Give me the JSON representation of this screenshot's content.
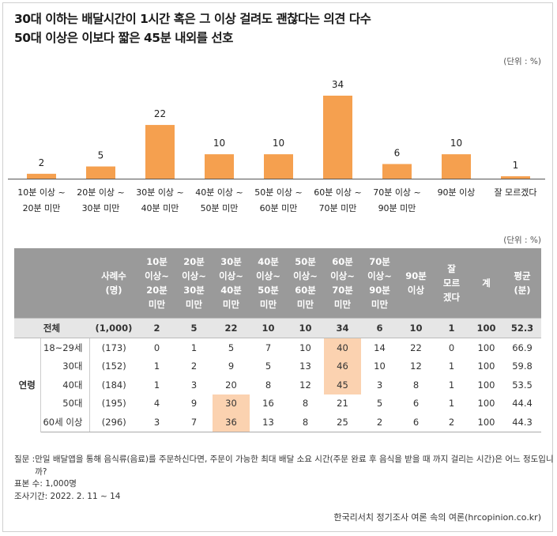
{
  "title_line1": "30대 이하는 배달시간이 1시간 혹은 그 이상 걸려도 괜찮다는 의견 다수",
  "title_line2": "50대 이상은 이보다 짧은 45분 내외를 선호",
  "unit": "(단위 : %)",
  "colors": {
    "bar": "#f5a04f",
    "highlight": "#fbd2b0",
    "header_bg": "#9a9a9a",
    "total_bg": "#e6e6e6"
  },
  "chart_data": {
    "type": "bar",
    "categories": [
      [
        "10분 이상 ~",
        "20분 미만"
      ],
      [
        "20분 이상 ~",
        "30분 미만"
      ],
      [
        "30분 이상 ~",
        "40분 미만"
      ],
      [
        "40분 이상 ~",
        "50분 미만"
      ],
      [
        "50분 이상 ~",
        "60분 미만"
      ],
      [
        "60분 이상 ~",
        "70분 미만"
      ],
      [
        "70분 이상 ~",
        "90분 미만"
      ],
      [
        "90분 이상"
      ],
      [
        "잘 모르겠다"
      ]
    ],
    "values": [
      2,
      5,
      22,
      10,
      10,
      34,
      6,
      10,
      1
    ],
    "ylim": [
      0,
      34
    ],
    "grid": false,
    "legend": "none"
  },
  "table": {
    "unit": "(단위 : %)",
    "headers": [
      [
        ""
      ],
      [
        ""
      ],
      [
        "사례수",
        "(명)"
      ],
      [
        "10분",
        "이상~",
        "20분",
        "미만"
      ],
      [
        "20분",
        "이상~",
        "30분",
        "미만"
      ],
      [
        "30분",
        "이상~",
        "40분",
        "미만"
      ],
      [
        "40분",
        "이상~",
        "50분",
        "미만"
      ],
      [
        "50분",
        "이상~",
        "60분",
        "미만"
      ],
      [
        "60분",
        "이상~",
        "70분",
        "미만"
      ],
      [
        "70분",
        "이상~",
        "90분",
        "미만"
      ],
      [
        "90분",
        "이상"
      ],
      [
        "잘",
        "모르",
        "겠다"
      ],
      [
        "계"
      ],
      [
        "평균",
        "(분)"
      ]
    ],
    "total": {
      "label": "전체",
      "cells": [
        "(1,000)",
        "2",
        "5",
        "22",
        "10",
        "10",
        "34",
        "6",
        "10",
        "1",
        "100",
        "52.3"
      ]
    },
    "group_label": "연령",
    "rows": [
      {
        "label": "18~29세",
        "cells": [
          "(173)",
          "0",
          "1",
          "5",
          "7",
          "10",
          "40",
          "14",
          "22",
          "0",
          "100",
          "66.9"
        ],
        "highlight": [
          6
        ]
      },
      {
        "label": "30대",
        "cells": [
          "(152)",
          "1",
          "2",
          "9",
          "5",
          "13",
          "46",
          "10",
          "12",
          "1",
          "100",
          "59.8"
        ],
        "highlight": [
          6
        ]
      },
      {
        "label": "40대",
        "cells": [
          "(184)",
          "1",
          "3",
          "20",
          "8",
          "12",
          "45",
          "3",
          "8",
          "1",
          "100",
          "53.5"
        ],
        "highlight": [
          6
        ]
      },
      {
        "label": "50대",
        "cells": [
          "(195)",
          "4",
          "9",
          "30",
          "16",
          "8",
          "21",
          "5",
          "6",
          "1",
          "100",
          "44.4"
        ],
        "highlight": [
          3
        ]
      },
      {
        "label": "60세 이상",
        "cells": [
          "(296)",
          "3",
          "7",
          "36",
          "13",
          "8",
          "25",
          "2",
          "6",
          "2",
          "100",
          "44.3"
        ],
        "highlight": [
          3
        ]
      }
    ]
  },
  "notes": {
    "question_label": "질문 : ",
    "question": "만일 배달앱을 통해 음식류(음료)를 주문하신다면, 주문이 가능한 최대 배달 소요 시간(주문 완료 후 음식을 받을 때 까지 걸리는 시간)은 어느 정도입니까?",
    "sample": "표본 수: 1,000명",
    "period": "조사기간: 2022. 2. 11 ~ 14"
  },
  "source": "한국리서치 정기조사 여론 속의 여론(hrcopinion.co.kr)"
}
